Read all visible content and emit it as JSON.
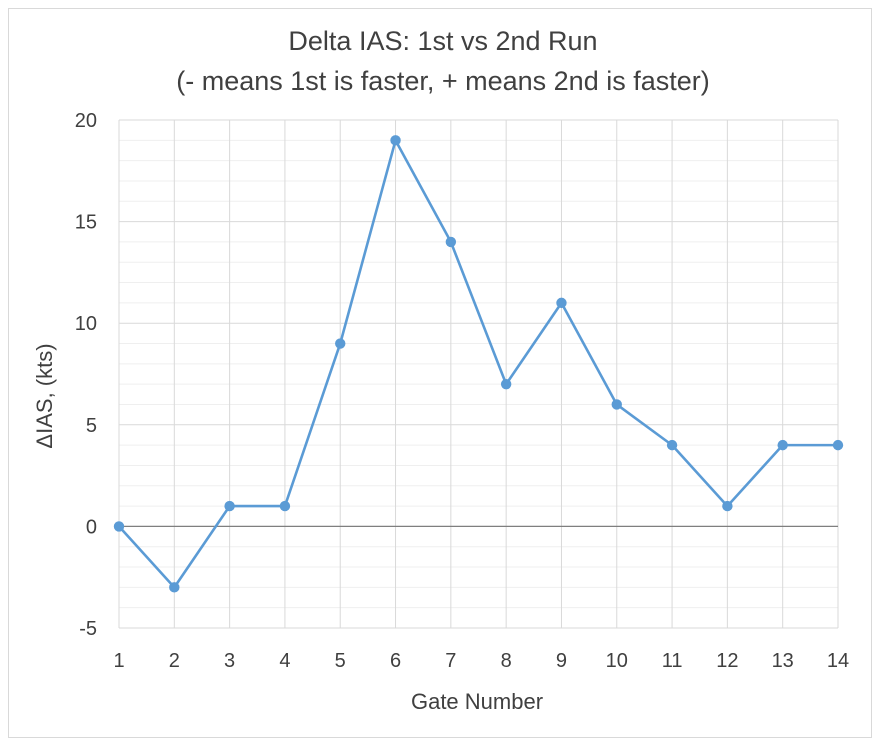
{
  "chart_data": {
    "type": "line",
    "title": "Delta IAS: 1st vs 2nd Run",
    "subtitle": "(- means 1st is faster, + means 2nd is faster)",
    "xlabel": "Gate Number",
    "ylabel": "ΔIAS, (kts)",
    "x": [
      1,
      2,
      3,
      4,
      5,
      6,
      7,
      8,
      9,
      10,
      11,
      12,
      13,
      14
    ],
    "x_tick_labels": [
      "1",
      "2",
      "3",
      "4",
      "5",
      "6",
      "7",
      "8",
      "9",
      "10",
      "11",
      "12",
      "13",
      "14"
    ],
    "y_tick_labels": [
      "20",
      "15",
      "10",
      "5",
      "0",
      "-5"
    ],
    "y_ticks": [
      20,
      15,
      10,
      5,
      0,
      -5
    ],
    "series": [
      {
        "values": [
          0,
          -3,
          1,
          1,
          9,
          19,
          14,
          7,
          11,
          6,
          4,
          1,
          4,
          4
        ],
        "color": "#5b9bd5"
      }
    ],
    "xlim": [
      1,
      14
    ],
    "ylim": [
      -5,
      20
    ],
    "grid": "major and minor",
    "legend": "none",
    "colors": {
      "line": "#5b9bd5",
      "grid": "#d9d9d9",
      "minor_grid": "#efefef",
      "text": "#404040",
      "zero_line": "#7f7f7f"
    }
  }
}
